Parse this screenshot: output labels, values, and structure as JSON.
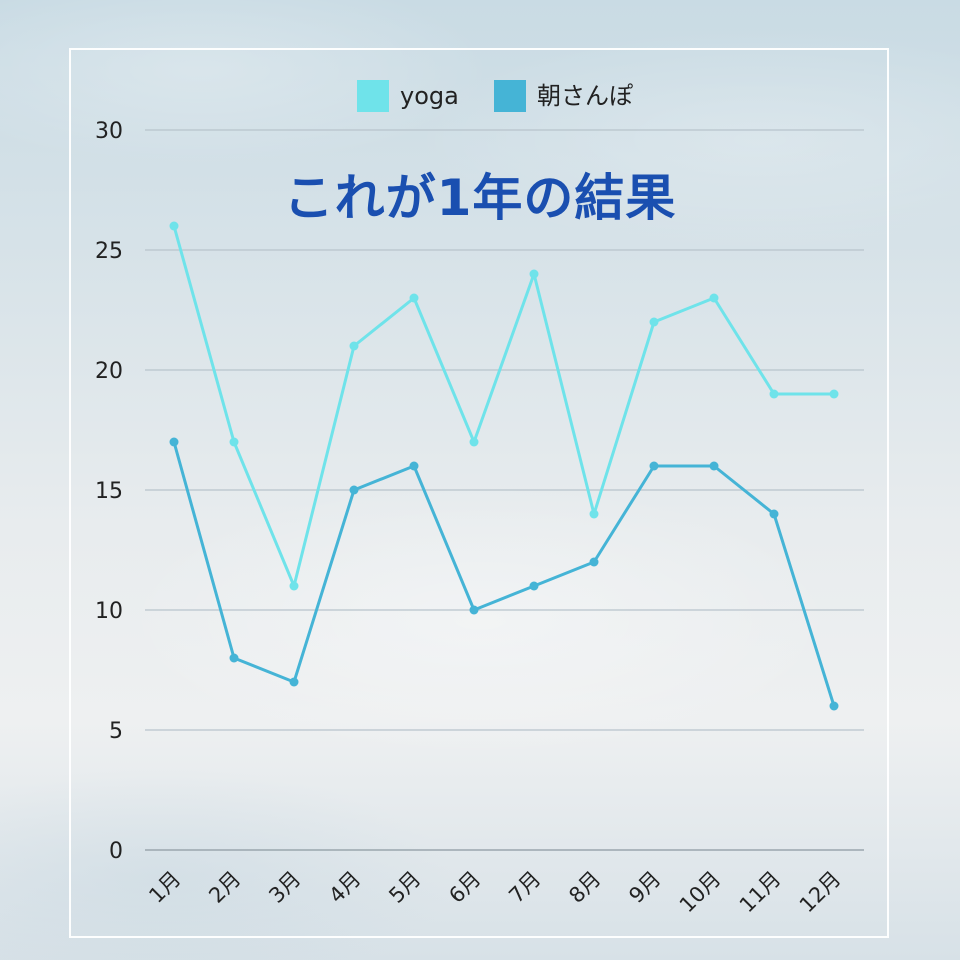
{
  "overlay_text": "これが1年の結果",
  "colors": {
    "yoga": "#6fe3ea",
    "walk": "#45b4d6",
    "grid": "#b8c4cc",
    "title": "#1a4fb0"
  },
  "chart_data": {
    "type": "line",
    "categories": [
      "1月",
      "2月",
      "3月",
      "4月",
      "5月",
      "6月",
      "7月",
      "8月",
      "9月",
      "10月",
      "11月",
      "12月"
    ],
    "series": [
      {
        "name": "yoga",
        "values": [
          26,
          17,
          11,
          21,
          23,
          17,
          24,
          14,
          22,
          23,
          19,
          19
        ]
      },
      {
        "name": "朝さんぽ",
        "values": [
          17,
          8,
          7,
          15,
          16,
          10,
          11,
          12,
          16,
          16,
          14,
          6
        ]
      }
    ],
    "yticks": [
      "0",
      "5",
      "10",
      "15",
      "20",
      "25",
      "30"
    ],
    "ylim": [
      0,
      30
    ],
    "grid": true,
    "legend_position": "top"
  }
}
